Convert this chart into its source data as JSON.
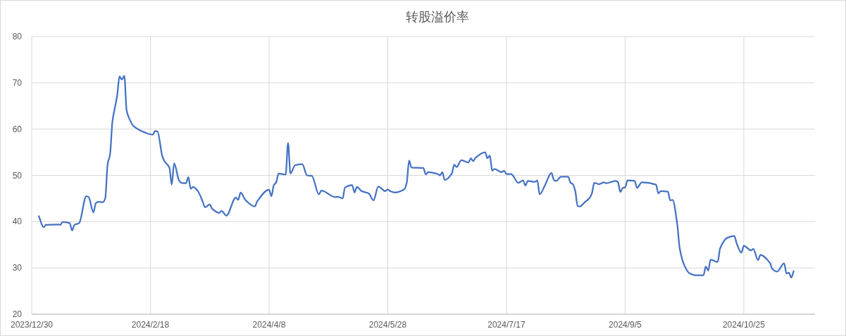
{
  "chart_data": {
    "type": "line",
    "title": "转股溢价率",
    "x": [
      "2024-01-02",
      "2024-01-04",
      "2024-01-05",
      "2024-01-10",
      "2024-01-11",
      "2024-01-12",
      "2024-01-15",
      "2024-01-16",
      "2024-01-17",
      "2024-01-19",
      "2024-01-22",
      "2024-01-23",
      "2024-01-25",
      "2024-01-26",
      "2024-01-27",
      "2024-01-29",
      "2024-01-30",
      "2024-01-31",
      "2024-02-01",
      "2024-02-02",
      "2024-02-04",
      "2024-02-05",
      "2024-02-06",
      "2024-02-07",
      "2024-02-08",
      "2024-02-09",
      "2024-02-11",
      "2024-02-16",
      "2024-02-19",
      "2024-02-20",
      "2024-02-21",
      "2024-02-23",
      "2024-02-24",
      "2024-02-26",
      "2024-02-27",
      "2024-02-28",
      "2024-03-01",
      "2024-03-02",
      "2024-03-04",
      "2024-03-05",
      "2024-03-06",
      "2024-03-07",
      "2024-03-09",
      "2024-03-11",
      "2024-03-12",
      "2024-03-14",
      "2024-03-15",
      "2024-03-18",
      "2024-03-19",
      "2024-03-21",
      "2024-03-25",
      "2024-03-26",
      "2024-03-27",
      "2024-03-29",
      "2024-04-02",
      "2024-04-03",
      "2024-04-08",
      "2024-04-09",
      "2024-04-10",
      "2024-04-11",
      "2024-04-12",
      "2024-04-15",
      "2024-04-16",
      "2024-04-17",
      "2024-04-19",
      "2024-04-22",
      "2024-04-24",
      "2024-04-26",
      "2024-04-29",
      "2024-04-30",
      "2024-05-06",
      "2024-05-07",
      "2024-05-09",
      "2024-05-10",
      "2024-05-13",
      "2024-05-14",
      "2024-05-15",
      "2024-05-17",
      "2024-05-20",
      "2024-05-22",
      "2024-05-24",
      "2024-05-27",
      "2024-05-28",
      "2024-05-29",
      "2024-05-31",
      "2024-06-04",
      "2024-06-05",
      "2024-06-06",
      "2024-06-07",
      "2024-06-12",
      "2024-06-13",
      "2024-06-14",
      "2024-06-18",
      "2024-06-19",
      "2024-06-20",
      "2024-06-21",
      "2024-06-24",
      "2024-06-25",
      "2024-06-26",
      "2024-06-28",
      "2024-07-01",
      "2024-07-02",
      "2024-07-03",
      "2024-07-04",
      "2024-07-08",
      "2024-07-09",
      "2024-07-10",
      "2024-07-11",
      "2024-07-12",
      "2024-07-15",
      "2024-07-16",
      "2024-07-17",
      "2024-07-19",
      "2024-07-22",
      "2024-07-24",
      "2024-07-25",
      "2024-07-26",
      "2024-07-29",
      "2024-07-30",
      "2024-07-31",
      "2024-08-02",
      "2024-08-05",
      "2024-08-06",
      "2024-08-07",
      "2024-08-09",
      "2024-08-12",
      "2024-08-13",
      "2024-08-14",
      "2024-08-15",
      "2024-08-16",
      "2024-08-17",
      "2024-08-19",
      "2024-08-21",
      "2024-08-22",
      "2024-08-23",
      "2024-08-25",
      "2024-08-27",
      "2024-08-28",
      "2024-09-01",
      "2024-09-02",
      "2024-09-03",
      "2024-09-04",
      "2024-09-05",
      "2024-09-06",
      "2024-09-09",
      "2024-09-10",
      "2024-09-12",
      "2024-09-18",
      "2024-09-19",
      "2024-09-20",
      "2024-09-23",
      "2024-09-24",
      "2024-09-25",
      "2024-09-27",
      "2024-09-28",
      "2024-09-30",
      "2024-10-02",
      "2024-10-05",
      "2024-10-08",
      "2024-10-09",
      "2024-10-10",
      "2024-10-11",
      "2024-10-14",
      "2024-10-15",
      "2024-10-18",
      "2024-10-21",
      "2024-10-22",
      "2024-10-24",
      "2024-10-25",
      "2024-10-28",
      "2024-10-29",
      "2024-10-31",
      "2024-11-01",
      "2024-11-05",
      "2024-11-06",
      "2024-11-08",
      "2024-11-11",
      "2024-11-12",
      "2024-11-13",
      "2024-11-14",
      "2024-11-15"
    ],
    "series": [
      {
        "color": "#4472c4",
        "values": [
          41.2,
          38.8,
          39.3,
          39.4,
          39.3,
          39.9,
          39.7,
          38.1,
          39.3,
          39.7,
          45.5,
          45.3,
          42.0,
          44.0,
          44.3,
          44.2,
          45.1,
          52.5,
          54.5,
          61.6,
          67.2,
          71.4,
          70.7,
          71.5,
          64.0,
          62.4,
          60.6,
          59.2,
          58.8,
          59.6,
          59.5,
          54.2,
          53.0,
          51.7,
          48.0,
          52.6,
          49.0,
          48.4,
          48.3,
          49.6,
          47.1,
          47.5,
          46.6,
          44.4,
          43.1,
          43.7,
          42.8,
          41.9,
          42.3,
          41.3,
          45.2,
          44.7,
          46.3,
          44.7,
          43.3,
          44.4,
          46.9,
          45.5,
          47.9,
          48.5,
          50.4,
          50.2,
          57.0,
          50.4,
          52.2,
          52.4,
          50.0,
          49.9,
          45.9,
          46.7,
          45.3,
          45.4,
          45.0,
          47.4,
          47.9,
          46.3,
          47.5,
          46.6,
          46.1,
          44.6,
          47.6,
          46.6,
          47.0,
          46.6,
          46.3,
          47.0,
          48.4,
          53.2,
          51.7,
          51.6,
          50.2,
          50.7,
          50.3,
          50.0,
          50.7,
          49.0,
          50.4,
          52.3,
          51.8,
          53.3,
          52.8,
          53.7,
          53.1,
          53.8,
          55.0,
          53.7,
          54.3,
          51.0,
          51.4,
          50.7,
          51.0,
          50.3,
          50.3,
          48.4,
          48.9,
          47.8,
          48.8,
          48.6,
          48.9,
          45.9,
          47.6,
          50.5,
          49.0,
          48.8,
          49.7,
          49.7,
          48.4,
          48.1,
          46.6,
          43.4,
          43.3,
          44.2,
          45.1,
          46.1,
          48.4,
          48.1,
          48.5,
          48.3,
          48.8,
          48.5,
          46.4,
          47.3,
          47.4,
          48.9,
          48.8,
          47.3,
          48.5,
          48.0,
          46.1,
          46.6,
          46.5,
          44.6,
          44.7,
          39.3,
          34.2,
          30.5,
          28.9,
          28.4,
          28.4,
          30.3,
          29.4,
          31.8,
          31.3,
          34.2,
          36.5,
          36.9,
          35.3,
          33.3,
          34.8,
          33.8,
          34.1,
          31.7,
          32.8,
          31.1,
          29.8,
          29.2,
          31.0,
          28.8,
          29.0,
          27.9,
          29.3
        ]
      }
    ],
    "xlim": [
      "2023-12-30",
      "2024-11-24"
    ],
    "xticks": [
      {
        "value": "2023-12-30",
        "label": "2023/12/30"
      },
      {
        "value": "2024-02-18",
        "label": "2024/2/18"
      },
      {
        "value": "2024-04-08",
        "label": "2024/4/8"
      },
      {
        "value": "2024-05-28",
        "label": "2024/5/28"
      },
      {
        "value": "2024-07-17",
        "label": "2024/7/17"
      },
      {
        "value": "2024-09-05",
        "label": "2024/9/5"
      },
      {
        "value": "2024-10-25",
        "label": "2024/10/25"
      }
    ],
    "ylim": [
      20,
      80
    ],
    "yticks": [
      20,
      30,
      40,
      50,
      60,
      70,
      80
    ],
    "grid": true,
    "marker": "none",
    "line_style": "solid"
  }
}
